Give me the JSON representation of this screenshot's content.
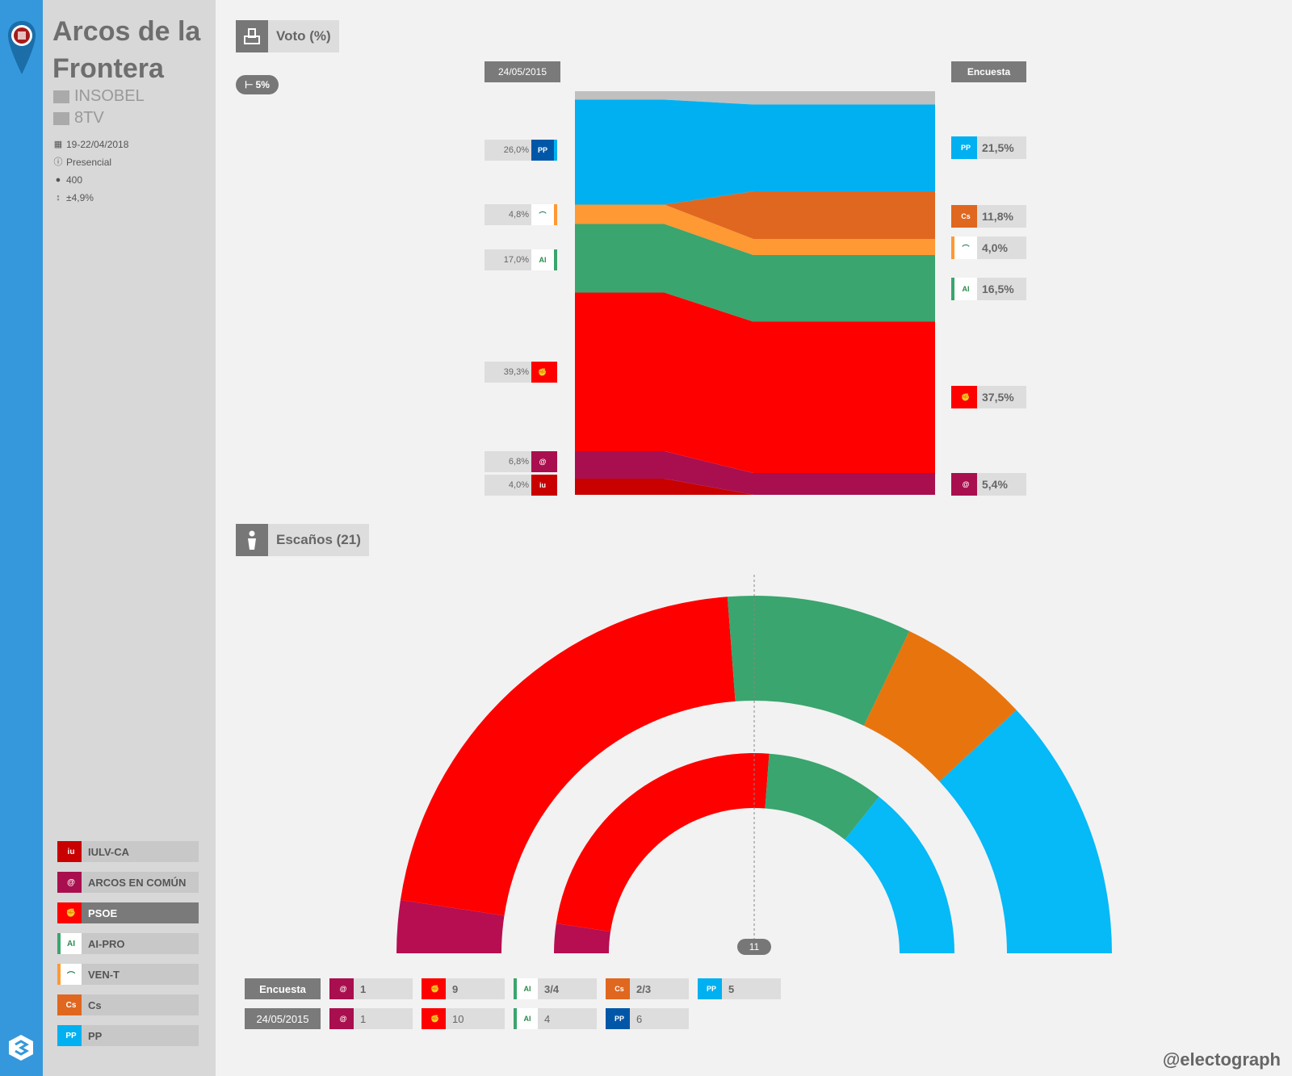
{
  "meta": {
    "title": "Arcos de la Frontera",
    "pollster": "INSOBEL",
    "media": "8TV",
    "date": "19-22/04/2018",
    "method": "Presencial",
    "sample": "400",
    "error": "±4,9%"
  },
  "legend": [
    {
      "name": "IULV-CA",
      "color": "#c90000",
      "icon": "iu-logo",
      "selected": false
    },
    {
      "name": "ARCOS EN COMÚN",
      "color": "#a90f4e",
      "icon": "swirl-logo",
      "selected": false
    },
    {
      "name": "PSOE",
      "color": "#ff0000",
      "icon": "psoe-logo",
      "selected": true
    },
    {
      "name": "AI-PRO",
      "color": "#3aa56e",
      "icon": "aipro-logo",
      "selected": false
    },
    {
      "name": "VEN-T",
      "color": "#ff9933",
      "icon": "vent-logo",
      "selected": false
    },
    {
      "name": "Cs",
      "color": "#e0671f",
      "icon": "cs-logo",
      "selected": false
    },
    {
      "name": "PP",
      "color": "#00b0f0",
      "icon": "pp-logo",
      "selected": false
    }
  ],
  "vote_section": {
    "label": "Voto (%)",
    "threshold": "5%",
    "col_left": "24/05/2015",
    "col_right": "Encuesta"
  },
  "seats_section": {
    "label": "Escaños (21)",
    "majority": "11"
  },
  "seats_rows": [
    {
      "label": "Encuesta",
      "cells": [
        {
          "party": "ARCOS EN COMÚN",
          "value": "1",
          "color": "#a90f4e"
        },
        {
          "party": "PSOE",
          "value": "9",
          "color": "#ff0000"
        },
        {
          "party": "AI-PRO",
          "value": "3/4",
          "color": "#3aa56e"
        },
        {
          "party": "Cs",
          "value": "2/3",
          "color": "#e0671f"
        },
        {
          "party": "PP",
          "value": "5",
          "color": "#00b0f0"
        }
      ]
    },
    {
      "label": "24/05/2015",
      "cells": [
        {
          "party": "ARCOS EN COMÚN",
          "value": "1",
          "color": "#a90f4e"
        },
        {
          "party": "PSOE",
          "value": "10",
          "color": "#ff0000"
        },
        {
          "party": "AI-PRO",
          "value": "4",
          "color": "#3aa56e"
        },
        {
          "party": "PP",
          "value": "6",
          "color": "#0057a8"
        }
      ]
    }
  ],
  "footer": "@electograph",
  "chart_data": [
    {
      "type": "area",
      "x": [
        "24/05/2015",
        "Encuesta"
      ],
      "ylim": [
        0,
        100
      ],
      "series": [
        {
          "name": "IULV-CA",
          "color": "#c90000",
          "values": [
            4.0,
            null
          ],
          "labels": [
            "4,0%",
            ""
          ]
        },
        {
          "name": "ARCOS EN COMÚN",
          "color": "#a90f4e",
          "values": [
            6.8,
            5.4
          ],
          "labels": [
            "6,8%",
            "5,4%"
          ]
        },
        {
          "name": "PSOE",
          "color": "#ff0000",
          "values": [
            39.3,
            37.5
          ],
          "labels": [
            "39,3%",
            "37,5%"
          ]
        },
        {
          "name": "AI-PRO",
          "color": "#3aa56e",
          "values": [
            17.0,
            16.5
          ],
          "labels": [
            "17,0%",
            "16,5%"
          ]
        },
        {
          "name": "VEN-T",
          "color": "#ff9933",
          "values": [
            4.8,
            4.0
          ],
          "labels": [
            "4,8%",
            "4,0%"
          ]
        },
        {
          "name": "Cs",
          "color": "#e0671f",
          "values": [
            null,
            11.8
          ],
          "labels": [
            "",
            "11,8%"
          ]
        },
        {
          "name": "PP",
          "color": "#00b0f0",
          "values": [
            26.0,
            21.5
          ],
          "labels": [
            "26,0%",
            "21,5%"
          ]
        }
      ]
    },
    {
      "type": "pie",
      "subtype": "hemicycle",
      "total": 21,
      "rings": [
        {
          "ring": "Encuesta",
          "segments": [
            {
              "party": "ARCOS EN COMÚN",
              "seats": 1,
              "color": "#b60e50"
            },
            {
              "party": "PSOE",
              "seats": 9,
              "color": "#ff0000"
            },
            {
              "party": "AI-PRO",
              "seats": 3.5,
              "color": "#3aa56e"
            },
            {
              "party": "Cs",
              "seats": 2.5,
              "color": "#e8740e"
            },
            {
              "party": "PP",
              "seats": 5,
              "color": "#06b9f7"
            }
          ]
        },
        {
          "ring": "24/05/2015",
          "segments": [
            {
              "party": "ARCOS EN COMÚN",
              "seats": 1,
              "color": "#b60e50"
            },
            {
              "party": "PSOE",
              "seats": 10,
              "color": "#ff0000"
            },
            {
              "party": "AI-PRO",
              "seats": 4,
              "color": "#3aa56e"
            },
            {
              "party": "PP",
              "seats": 6,
              "color": "#06b9f7"
            }
          ]
        }
      ]
    }
  ]
}
